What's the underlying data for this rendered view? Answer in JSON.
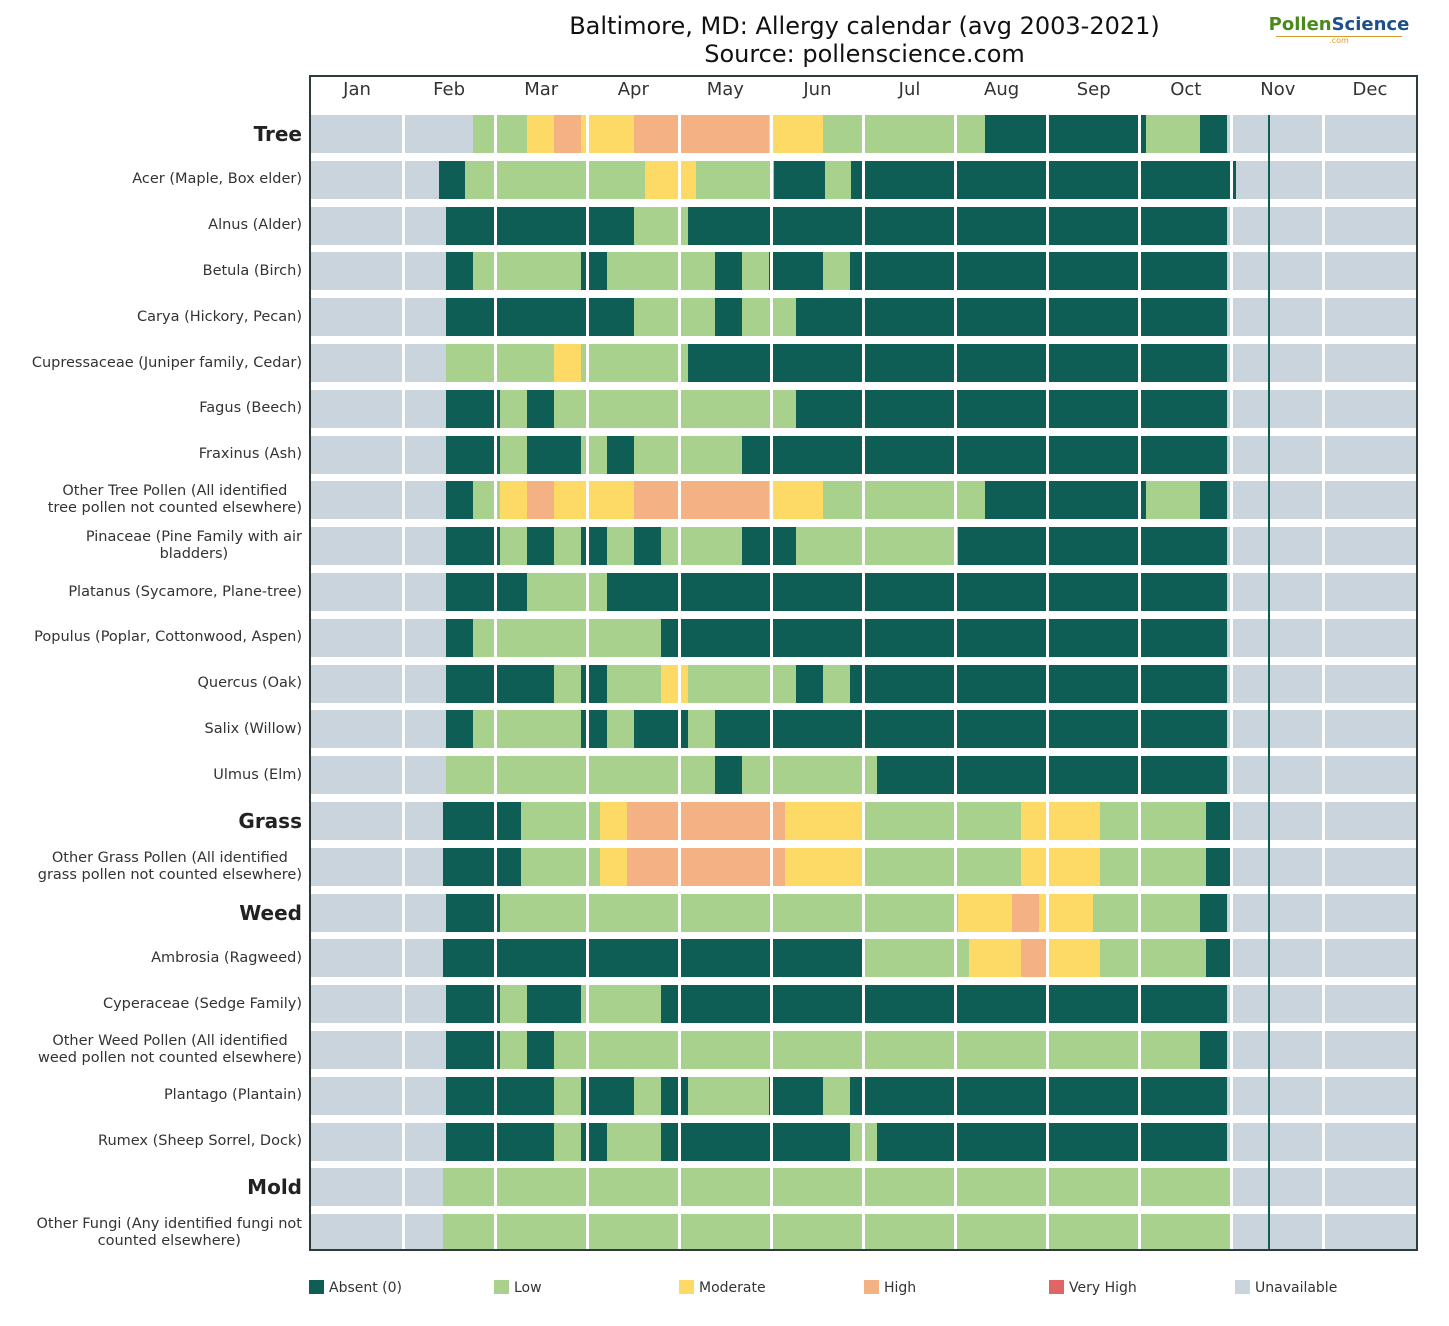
{
  "title_line1": "Baltimore, MD: Allergy calendar (avg 2003-2021)",
  "title_line2": "Source: pollenscience.com",
  "logo": {
    "part1": "Pollen",
    "part2": "Science",
    "sub": ".com"
  },
  "colors": {
    "absent": "#0f5e55",
    "low": "#a9d18e",
    "moderate": "#fdd966",
    "high": "#f4b183",
    "very_high": "#e06666",
    "unavailable": "#c9d4dc"
  },
  "chart_data": {
    "type": "heatmap",
    "title": "Baltimore, MD: Allergy calendar (avg 2003-2021)",
    "subtitle": "Source: pollenscience.com",
    "months": [
      "Jan",
      "Feb",
      "Mar",
      "Apr",
      "May",
      "Jun",
      "Jul",
      "Aug",
      "Sep",
      "Oct",
      "Nov",
      "Dec"
    ],
    "weeks_per_month": 4,
    "levels": [
      "Absent (0)",
      "Low",
      "Moderate",
      "High",
      "Very High",
      "Unavailable"
    ],
    "level_codes": {
      "A": "Absent (0)",
      "L": "Low",
      "M": "Moderate",
      "H": "High",
      "V": "Very High",
      "U": "Unavailable"
    },
    "rows": [
      {
        "label": "Tree",
        "category": true,
        "weeks": "UUUUUULLMHMMHHHHHMMLLLLLLAAAAAALLAUUUUUUU"
      },
      {
        "label": "Acer (Maple, Box elder)",
        "category": false,
        "weeks": "UUUUUALLLLLLLMMLLLAALAAAAAAAAAAAAAAAUUUUUUU"
      },
      {
        "label": "Alnus (Alder)",
        "category": false,
        "weeks": "UUUUUAAAAAAALLAAAAAAAAAAAAAAAAAAAAUUUUUUU"
      },
      {
        "label": "Betula (Birch)",
        "category": false,
        "weeks": "UUUUUALLLLALLLLALAALAAAAAAAAAAAAAAUUUUUUU"
      },
      {
        "label": "Carya (Hickory, Pecan)",
        "category": false,
        "weeks": "UUUUUAAAAAAALLLALLAAAAAAAAAAAAAAAAUUUUUUU"
      },
      {
        "label": "Cupressaceae (Juniper family, Cedar)",
        "category": false,
        "weeks": "UUUUULLLLMLLLLAAAAAAAAAAAAAAAAAAAAUUUUUUU"
      },
      {
        "label": "Fagus (Beech)",
        "category": false,
        "weeks": "UUUUUAALALLLLLLLLLAAAAAAAAAAAAAAAAUUUUUUU"
      },
      {
        "label": "Fraxinus (Ash)",
        "category": false,
        "weeks": "UUUUUAALAALALLLLAAAAAAAAAAAAAAAAAAUUUUUUU"
      },
      {
        "label": "Other Tree Pollen (All identified tree pollen not counted elsewhere)",
        "category": false,
        "weeks": "UUUUUALMHMMMHHHHHMMLLLLLLAAAAAALLAUUUUUUU"
      },
      {
        "label": "Pinaceae (Pine Family with air bladders)",
        "category": false,
        "weeks": "UUUUUAALALALALLLAALLLLLLAAAAAAAAAAUUUUUUU"
      },
      {
        "label": "Platanus (Sycamore, Plane-tree)",
        "category": false,
        "weeks": "UUUUUAAALLLAAAAAAAAAAAAAAAAAAAAAAAUUUUUUU"
      },
      {
        "label": "Populus (Poplar, Cottonwood, Aspen)",
        "category": false,
        "weeks": "UUUUUALLLLLLLAAAAAAAAAAAAAAAAAAAAAUUUUUUU"
      },
      {
        "label": "Quercus (Oak)",
        "category": false,
        "weeks": "UUUUUAAAALALLMLLLLALAAAAAAAAAAAAAAUUUUUUU"
      },
      {
        "label": "Salix (Willow)",
        "category": false,
        "weeks": "UUUUUALLLLALAALAAAAAAAAAAAAAAAAAAAUUUUUUU"
      },
      {
        "label": "Ulmus (Elm)",
        "category": false,
        "weeks": "UUUUULLLLLLLLLLALLLLLAAAAAAAAAAAAAUUUUUUU"
      },
      {
        "label": "Grass",
        "category": true,
        "weeks": "UUUUUAAALLLMHHHHHHMMMLLLLLLMMMLLLLAUUUUUUU"
      },
      {
        "label": "Other Grass Pollen (All identified grass pollen not counted elsewhere)",
        "category": false,
        "weeks": "UUUUUAAALLLMHHHHHHMMMLLLLLLMMMLLLLAUUUUUUU"
      },
      {
        "label": "Weed",
        "category": true,
        "weeks": "UUUUUAALLLLLLLLLLLLLLLLLMMHMMLLLLAUUUUUUU"
      },
      {
        "label": "Ambrosia (Ragweed)",
        "category": false,
        "weeks": "UUUUUAAAAAAAAAAAAAAAALLLLMMHMMLLLLAUUUUUUU"
      },
      {
        "label": "Cyperaceae (Sedge Family)",
        "category": false,
        "weeks": "UUUUUAALAALLLAAAAAAAAAAAAAAAAAAAAAUUUUUUU"
      },
      {
        "label": "Other Weed Pollen (All identified weed pollen not counted elsewhere)",
        "category": false,
        "weeks": "UUUUUAALALLLLLLLLLLLLLLLLLLLLLLLLAUUUUUUU"
      },
      {
        "label": "Plantago (Plantain)",
        "category": false,
        "weeks": "UUUUUAAAALAALALLLAALAAAAAAAAAAAAAAUUUUUUU"
      },
      {
        "label": "Rumex (Sheep Sorrel, Dock)",
        "category": false,
        "weeks": "UUUUUAAAALALLAAAAAAALAAAAAAAAAAAAAUUUUUUU"
      },
      {
        "label": "Mold",
        "category": true,
        "weeks": "UUUUULLLLLLLLLLLLLLLLLLLLLLLLLLLLLLUUUUUUU"
      },
      {
        "label": "Other Fungi (Any identified fungi not counted elsewhere)",
        "category": false,
        "weeks": "UUUUULLLLLLLLLLLLLLLLLLLLLLLLLLLLLLUUUUUUU"
      }
    ]
  },
  "row_labels": [
    {
      "l1": "Tree",
      "l2": ""
    },
    {
      "l1": "Acer (Maple, Box elder)",
      "l2": ""
    },
    {
      "l1": "Alnus (Alder)",
      "l2": ""
    },
    {
      "l1": "Betula (Birch)",
      "l2": ""
    },
    {
      "l1": "Carya (Hickory, Pecan)",
      "l2": ""
    },
    {
      "l1": "Cupressaceae (Juniper family, Cedar)",
      "l2": ""
    },
    {
      "l1": "Fagus (Beech)",
      "l2": ""
    },
    {
      "l1": "Fraxinus (Ash)",
      "l2": ""
    },
    {
      "l1": "Other Tree Pollen (All identified",
      "l2": "tree pollen not counted elsewhere)"
    },
    {
      "l1": "Pinaceae (Pine Family with air",
      "l2": "bladders)"
    },
    {
      "l1": "Platanus (Sycamore, Plane-tree)",
      "l2": ""
    },
    {
      "l1": "Populus (Poplar, Cottonwood, Aspen)",
      "l2": ""
    },
    {
      "l1": "Quercus (Oak)",
      "l2": ""
    },
    {
      "l1": "Salix (Willow)",
      "l2": ""
    },
    {
      "l1": "Ulmus (Elm)",
      "l2": ""
    },
    {
      "l1": "Grass",
      "l2": ""
    },
    {
      "l1": "Other Grass Pollen (All identified",
      "l2": "grass pollen not counted elsewhere)"
    },
    {
      "l1": "Weed",
      "l2": ""
    },
    {
      "l1": "Ambrosia (Ragweed)",
      "l2": ""
    },
    {
      "l1": "Cyperaceae (Sedge Family)",
      "l2": ""
    },
    {
      "l1": "Other Weed Pollen (All identified",
      "l2": "weed pollen not counted elsewhere)"
    },
    {
      "l1": "Plantago (Plantain)",
      "l2": ""
    },
    {
      "l1": "Rumex (Sheep Sorrel, Dock)",
      "l2": ""
    },
    {
      "l1": "Mold",
      "l2": ""
    },
    {
      "l1": "Other Fungi (Any identified fungi not",
      "l2": "counted elsewhere)"
    }
  ],
  "legend": [
    {
      "key": "absent",
      "label": "Absent (0)"
    },
    {
      "key": "low",
      "label": "Low"
    },
    {
      "key": "moderate",
      "label": "Moderate"
    },
    {
      "key": "high",
      "label": "High"
    },
    {
      "key": "very_high",
      "label": "Very High"
    },
    {
      "key": "unavailable",
      "label": "Unavailable"
    }
  ]
}
